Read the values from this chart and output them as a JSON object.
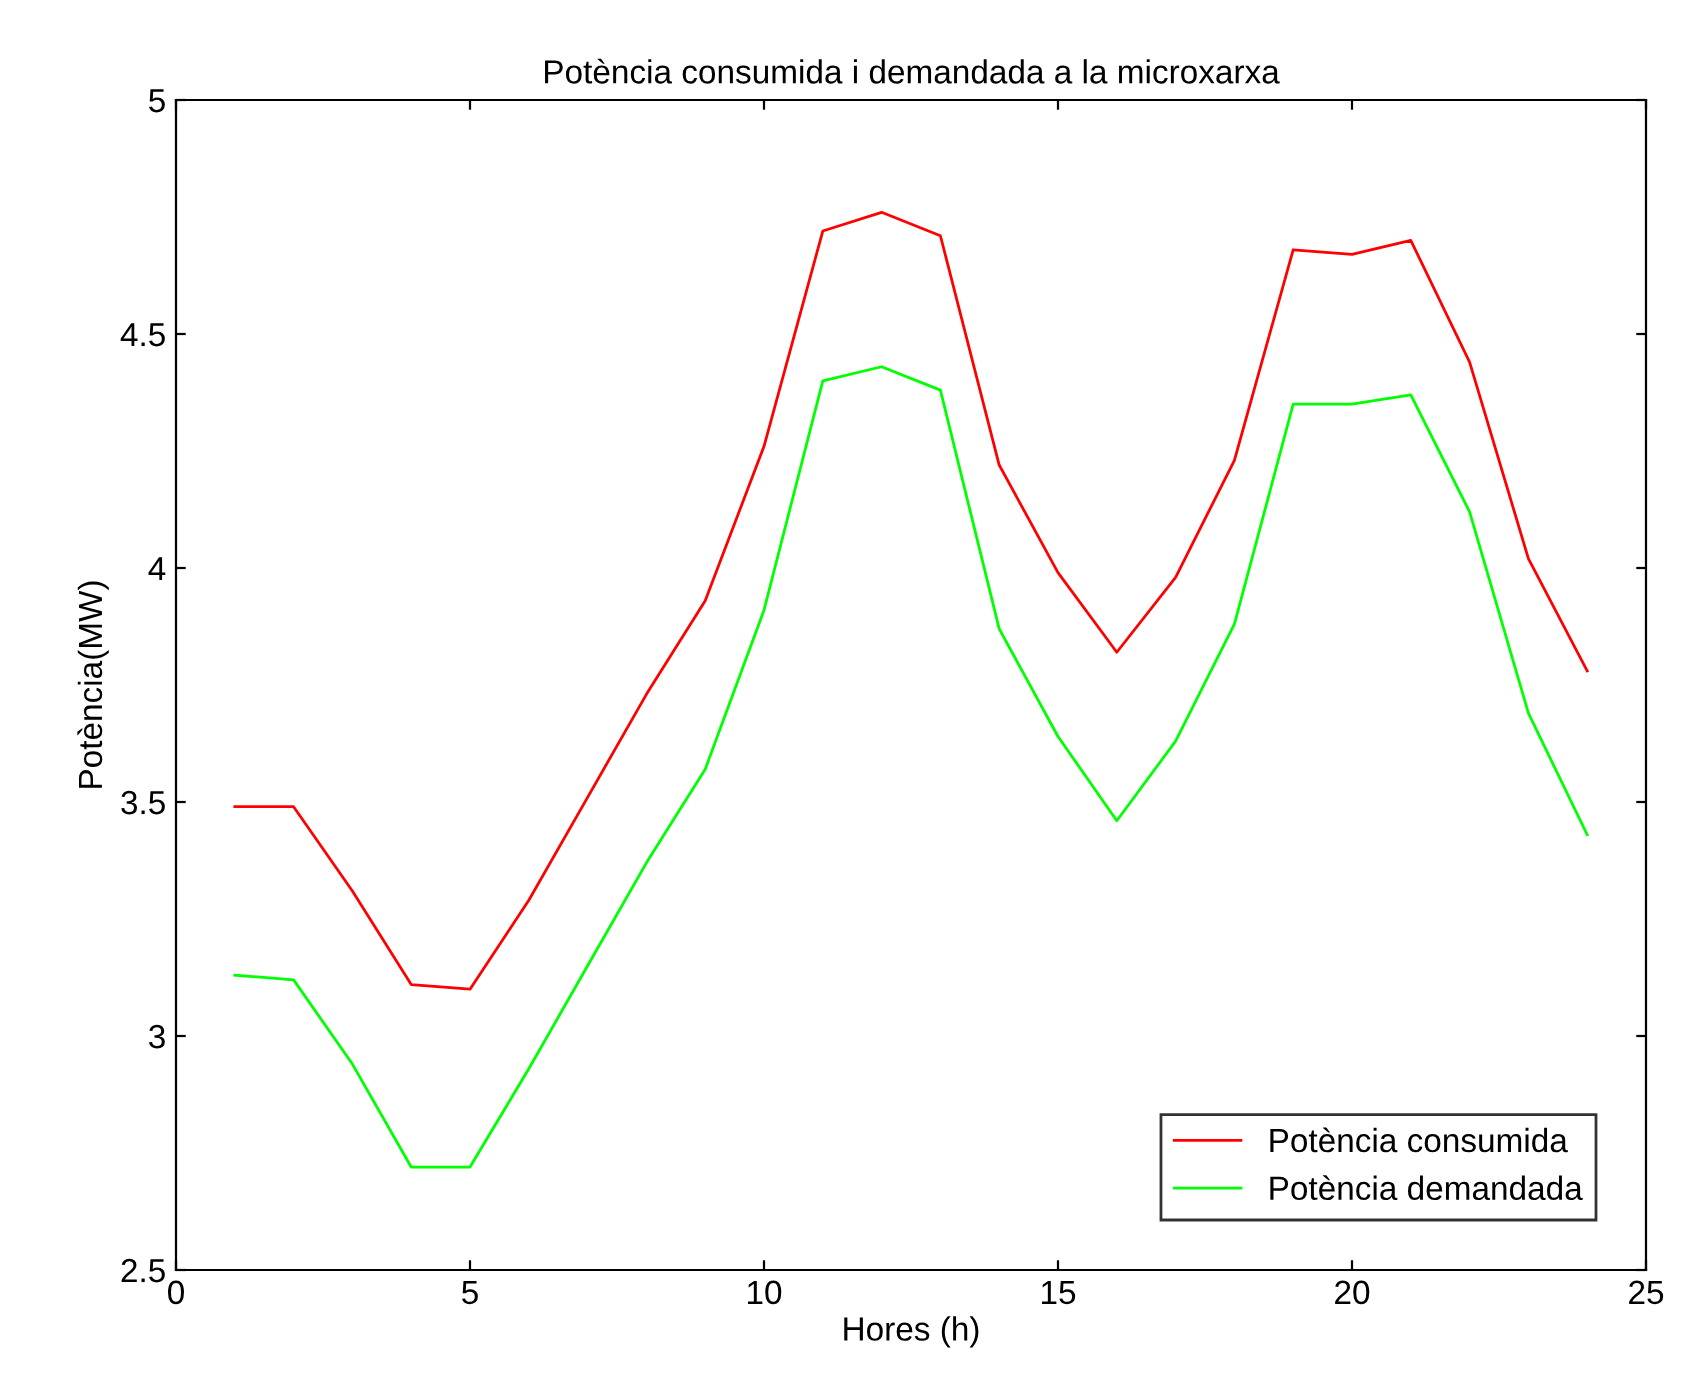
{
  "chart_data": {
    "type": "line",
    "title": "Potència consumida i demandada a la microxarxa",
    "xlabel": "Hores (h)",
    "ylabel": "Potència(MW)",
    "x": [
      1,
      2,
      3,
      4,
      5,
      6,
      7,
      8,
      9,
      10,
      11,
      12,
      13,
      14,
      15,
      16,
      17,
      18,
      19,
      20,
      21,
      22,
      23,
      24
    ],
    "series": [
      {
        "name": "Potència consumida",
        "color": "#ff0000",
        "values": [
          3.49,
          3.49,
          3.31,
          3.11,
          3.1,
          3.29,
          3.51,
          3.73,
          3.93,
          4.26,
          4.72,
          4.76,
          4.71,
          4.22,
          3.99,
          3.82,
          3.98,
          4.23,
          4.68,
          4.67,
          4.7,
          4.44,
          4.02,
          3.78
        ]
      },
      {
        "name": "Potència demandada",
        "color": "#00ff00",
        "values": [
          3.13,
          3.12,
          2.94,
          2.72,
          2.72,
          2.93,
          3.15,
          3.37,
          3.57,
          3.91,
          4.4,
          4.43,
          4.38,
          3.87,
          3.64,
          3.46,
          3.63,
          3.88,
          4.35,
          4.35,
          4.37,
          4.12,
          3.69,
          3.43
        ]
      }
    ],
    "xlim": [
      0,
      25
    ],
    "xticks": [
      0,
      5,
      10,
      15,
      20,
      25
    ],
    "ylim": [
      2.5,
      5
    ],
    "yticks": [
      2.5,
      3,
      3.5,
      4,
      4.5,
      5
    ],
    "grid": false,
    "legend": "bottom right",
    "marker": "none",
    "line_style": "solid"
  }
}
